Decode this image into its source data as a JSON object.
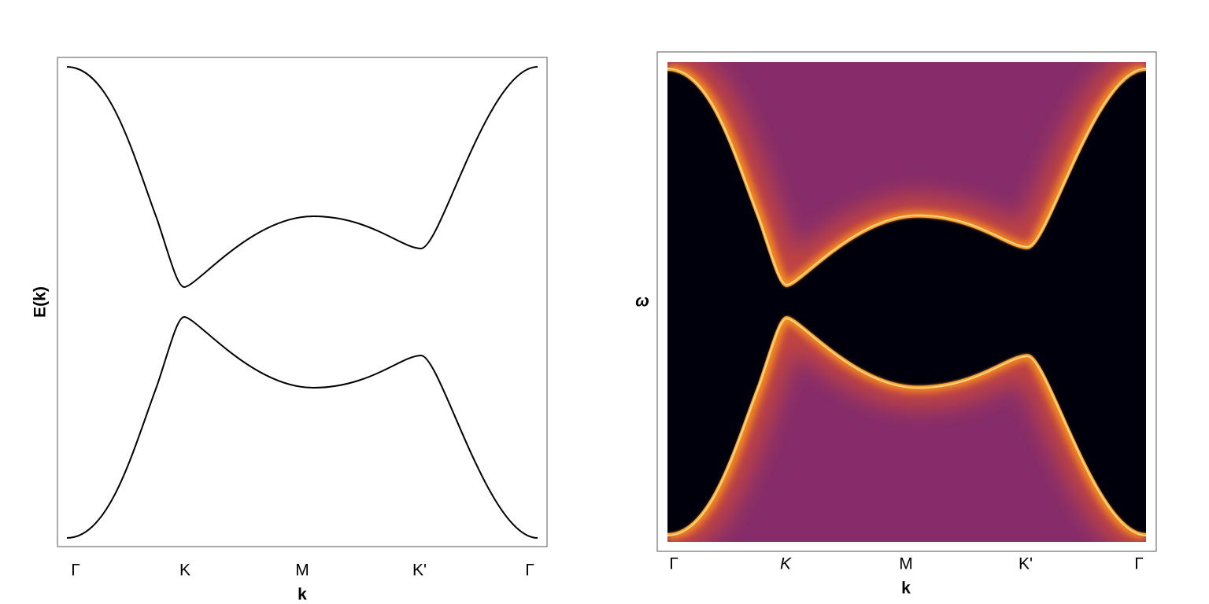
{
  "panels": [
    {
      "tick_labels": [
        "Γ",
        "K",
        "M",
        "K'",
        "Γ"
      ],
      "x_label": "k",
      "y_label": "E(k)"
    },
    {
      "tick_labels": [
        "Γ",
        "K",
        "M",
        "K'",
        "Γ"
      ],
      "x_label": "k",
      "y_label": "ω"
    }
  ]
}
